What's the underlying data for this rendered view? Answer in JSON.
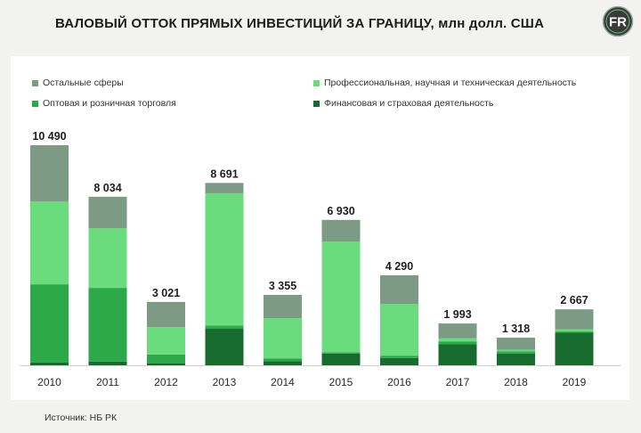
{
  "header": {
    "title": "ВАЛОВЫЙ ОТТОК ПРЯМЫХ ИНВЕСТИЦИЙ ЗА ГРАНИЦУ, млн долл. США",
    "logo_text": "FR"
  },
  "footer": {
    "source": "Источник: НБ РК"
  },
  "colors": {
    "other": "#7d9a85",
    "professional": "#6bdc7d",
    "trade": "#2ea94a",
    "finance": "#176b2e"
  },
  "chart_data": {
    "type": "bar",
    "stacked": true,
    "categories": [
      "2010",
      "2011",
      "2012",
      "2013",
      "2014",
      "2015",
      "2016",
      "2017",
      "2018",
      "2019"
    ],
    "totals": [
      10490,
      8034,
      3021,
      8691,
      3355,
      6930,
      4290,
      1993,
      1318,
      2667
    ],
    "total_labels": [
      "10 490",
      "8 034",
      "3 021",
      "8 691",
      "3 355",
      "6 930",
      "4 290",
      "1 993",
      "1 318",
      "2 667"
    ],
    "series": [
      {
        "key": "finance",
        "name": "Финансовая и страховая деятельность",
        "values": [
          130,
          180,
          100,
          1740,
          200,
          560,
          350,
          1000,
          560,
          1550
        ]
      },
      {
        "key": "trade",
        "name": "Оптовая и розничная торговля",
        "values": [
          3730,
          3510,
          420,
          160,
          130,
          60,
          110,
          140,
          100,
          60
        ]
      },
      {
        "key": "professional",
        "name": "Профессиональная, научная и техническая деятельность",
        "values": [
          3940,
          2840,
          1300,
          6300,
          1920,
          5280,
          2470,
          140,
          80,
          110
        ]
      },
      {
        "key": "other",
        "name": "Остальные сферы",
        "values": [
          2690,
          1504,
          1201,
          491,
          1105,
          1030,
          1360,
          713,
          578,
          947
        ]
      }
    ],
    "legend_order": [
      "other",
      "professional",
      "trade",
      "finance"
    ],
    "ylim": [
      0,
      11000
    ],
    "grid": false,
    "legend": "top"
  }
}
